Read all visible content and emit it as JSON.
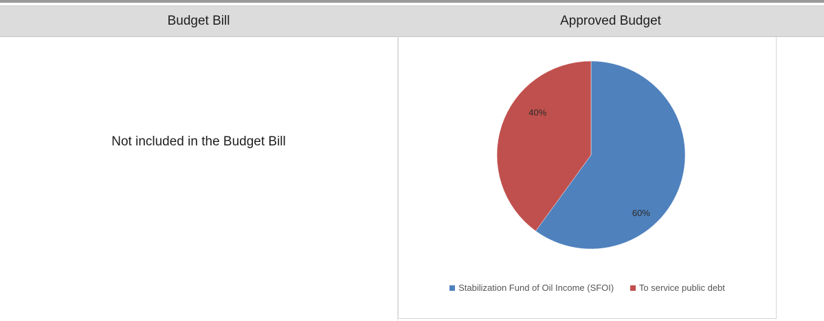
{
  "table": {
    "headers": [
      "Budget Bill",
      "Approved Budget"
    ],
    "left_cell_text": "Not included in the Budget Bill"
  },
  "chart_data": {
    "type": "pie",
    "slices": [
      {
        "name": "Stabilization Fund of Oil Income (SFOI)",
        "value": 60,
        "label": "60%",
        "color": "#4f81bd"
      },
      {
        "name": "To service public debt",
        "value": 40,
        "label": "40%",
        "color": "#c0504d"
      }
    ],
    "legend_placement": "bottom"
  }
}
